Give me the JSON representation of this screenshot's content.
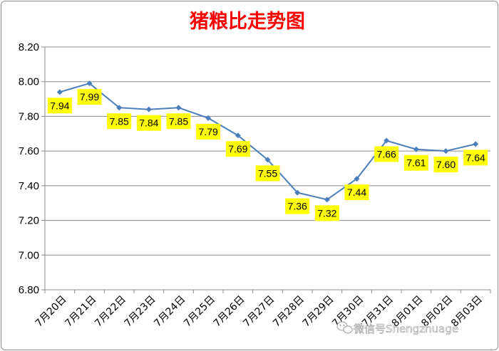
{
  "chart_data": {
    "type": "line",
    "title": "猪粮比走势图",
    "title_color": "#ff0000",
    "line_color": "#4a7ebb",
    "label_bg_color": "#ffff00",
    "categories": [
      "7月20日",
      "7月21日",
      "7月22日",
      "7月23日",
      "7月24日",
      "7月25日",
      "7月26日",
      "7月27日",
      "7月28日",
      "7月29日",
      "7月30日",
      "7月31日",
      "8月01日",
      "8月02日",
      "8月03日"
    ],
    "values": [
      7.94,
      7.99,
      7.85,
      7.84,
      7.85,
      7.79,
      7.69,
      7.55,
      7.36,
      7.32,
      7.44,
      7.66,
      7.61,
      7.6,
      7.64
    ],
    "data_labels": [
      "7.94",
      "7.99",
      "7.85",
      "7.84",
      "7.85",
      "7.79",
      "7.69",
      "7.55",
      "7.36",
      "7.32",
      "7.44",
      "7.66",
      "7.61",
      "7.60",
      "7.64"
    ],
    "yticks": [
      "6.80",
      "7.00",
      "7.20",
      "7.40",
      "7.60",
      "7.80",
      "8.00",
      "8.20"
    ],
    "ylim": [
      6.8,
      8.2
    ],
    "xlabel": "",
    "ylabel": "",
    "grid": "horizontal",
    "legend": "none"
  },
  "watermark": {
    "icon": "wechat-icon",
    "text": "微信号Shengzhuage"
  }
}
